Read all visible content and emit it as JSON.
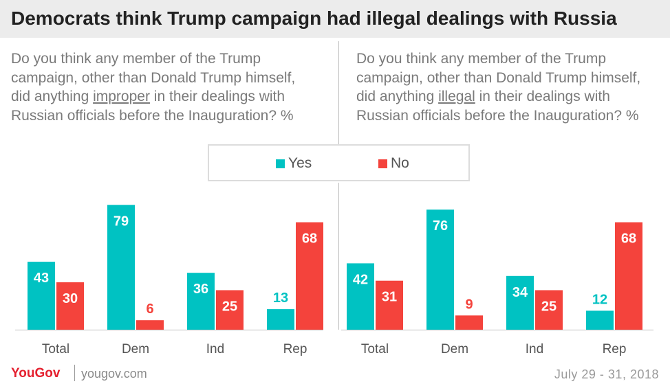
{
  "title": "Democrats think Trump campaign had illegal dealings with Russia",
  "questions": [
    {
      "before": "Do you think any member of the Trump campaign, other than Donald Trump himself, did anything ",
      "keyword": "improper",
      "after": " in their dealings with Russian officials before the Inauguration? %"
    },
    {
      "before": "Do you think any member of the Trump campaign, other than Donald Trump himself, did anything ",
      "keyword": "illegal",
      "after": " in their dealings with Russian officials before the Inauguration? %"
    }
  ],
  "legend": [
    {
      "label": "Yes",
      "color": "#00c2c2"
    },
    {
      "label": "No",
      "color": "#f4433c"
    }
  ],
  "chart_data": [
    {
      "type": "bar",
      "categories": [
        "Total",
        "Dem",
        "Ind",
        "Rep"
      ],
      "series": [
        {
          "name": "Yes",
          "values": [
            43,
            79,
            36,
            13
          ],
          "color": "#00c2c2"
        },
        {
          "name": "No",
          "values": [
            30,
            6,
            25,
            68
          ],
          "color": "#f4433c"
        }
      ]
    },
    {
      "type": "bar",
      "categories": [
        "Total",
        "Dem",
        "Ind",
        "Rep"
      ],
      "series": [
        {
          "name": "Yes",
          "values": [
            42,
            76,
            34,
            12
          ],
          "color": "#00c2c2"
        },
        {
          "name": "No",
          "values": [
            31,
            9,
            25,
            68
          ],
          "color": "#f4433c"
        }
      ]
    }
  ],
  "footer": {
    "logo": "YouGov",
    "url": "yougov.com",
    "date": "July 29 - 31, 2018"
  }
}
